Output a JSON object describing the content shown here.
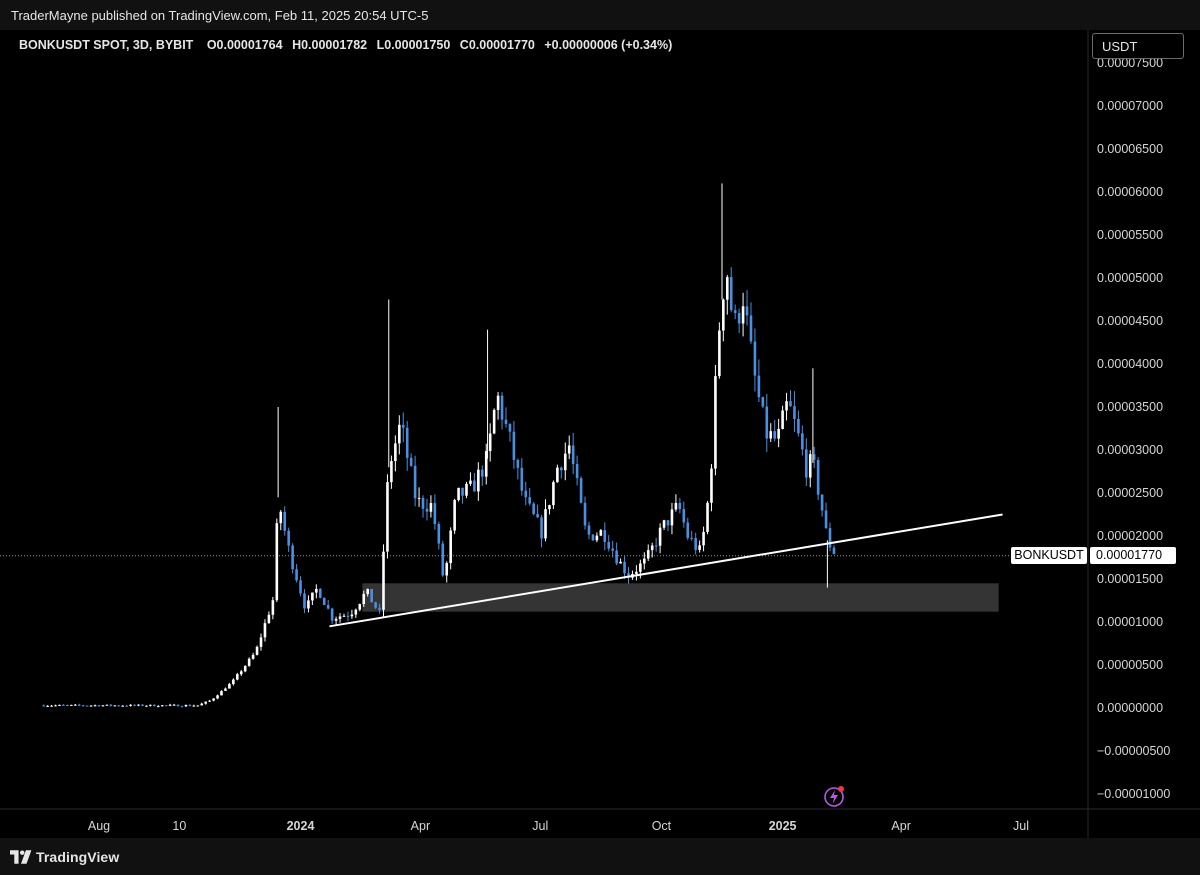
{
  "publish_info": "TraderMayne published on TradingView.com, Feb 11, 2025 20:54 UTC-5",
  "legend": {
    "symbol": "BONKUSDT SPOT, 3D, BYBIT",
    "open": "O0.00001764",
    "high": "H0.00001782",
    "low": "L0.00001750",
    "close": "C0.00001770",
    "change": "+0.00000006 (+0.34%)"
  },
  "currency_button": "USDT",
  "last_price_symbol": "BONKUSDT",
  "last_price_value": "0.00001770",
  "brand": "TradingView",
  "colors": {
    "background": "#000000",
    "bull_candle": "#ffffff",
    "bear_candle": "#4a90e2",
    "trendline": "#ffffff",
    "zone": "#3a3a3a",
    "grid": "#1a1a1a"
  },
  "icons": {
    "logo": "tradingview-logo-icon",
    "lightning": "lightning-icon"
  },
  "chart_data": {
    "type": "candlestick",
    "title": "BONKUSDT SPOT, 3D, BYBIT",
    "ylim": [
      -1.05e-05,
      7.55e-05
    ],
    "y_ticks": [
      "0.00007500",
      "0.00007000",
      "0.00006500",
      "0.00006000",
      "0.00005500",
      "0.00005000",
      "0.00004500",
      "0.00004000",
      "0.00003500",
      "0.00003000",
      "0.00002500",
      "0.00002000",
      "0.00001500",
      "0.00001000",
      "0.00000500",
      "0.00000000",
      "−0.00000500",
      "−0.00001000"
    ],
    "x_ticks": [
      {
        "label": "Aug",
        "date": "2023-08-01"
      },
      {
        "label": "10",
        "date": "2023-10-01"
      },
      {
        "label": "2024",
        "date": "2024-01-01",
        "bold": true
      },
      {
        "label": "Apr",
        "date": "2024-04-01"
      },
      {
        "label": "Jul",
        "date": "2024-07-01"
      },
      {
        "label": "Oct",
        "date": "2024-10-01"
      },
      {
        "label": "2025",
        "date": "2025-01-01",
        "bold": true
      },
      {
        "label": "Apr",
        "date": "2025-04-01"
      },
      {
        "label": "Jul",
        "date": "2025-07-01"
      }
    ],
    "xlim": [
      "2023-06-16",
      "2025-08-31"
    ],
    "last_price": 1.77e-05,
    "price_path": [
      {
        "date": "2023-06-17",
        "close": 3e-07
      },
      {
        "date": "2023-10-15",
        "close": 3e-07
      },
      {
        "date": "2023-10-25",
        "close": 9e-07
      },
      {
        "date": "2023-11-10",
        "close": 3e-06
      },
      {
        "date": "2023-11-28",
        "close": 6.5e-06
      },
      {
        "date": "2023-12-12",
        "close": 1.3e-05
      },
      {
        "date": "2023-12-15",
        "close": 2.45e-05
      },
      {
        "date": "2023-12-22",
        "close": 1.9e-05
      },
      {
        "date": "2024-01-05",
        "close": 1.15e-05
      },
      {
        "date": "2024-01-14",
        "close": 1.4e-05
      },
      {
        "date": "2024-01-25",
        "close": 1.05e-05
      },
      {
        "date": "2024-02-08",
        "close": 1.1e-05
      },
      {
        "date": "2024-02-20",
        "close": 1.35e-05
      },
      {
        "date": "2024-03-01",
        "close": 1.1e-05
      },
      {
        "date": "2024-03-08",
        "close": 2.8e-05
      },
      {
        "date": "2024-03-17",
        "close": 3.3e-05
      },
      {
        "date": "2024-03-29",
        "close": 2.4e-05
      },
      {
        "date": "2024-04-10",
        "close": 2.35e-05
      },
      {
        "date": "2024-04-19",
        "close": 1.45e-05
      },
      {
        "date": "2024-04-28",
        "close": 2.45e-05
      },
      {
        "date": "2024-05-10",
        "close": 2.55e-05
      },
      {
        "date": "2024-05-22",
        "close": 2.9e-05
      },
      {
        "date": "2024-05-29",
        "close": 3.65e-05
      },
      {
        "date": "2024-06-08",
        "close": 3.1e-05
      },
      {
        "date": "2024-06-19",
        "close": 2.4e-05
      },
      {
        "date": "2024-07-02",
        "close": 2.05e-05
      },
      {
        "date": "2024-07-14",
        "close": 2.8e-05
      },
      {
        "date": "2024-07-23",
        "close": 3.05e-05
      },
      {
        "date": "2024-08-05",
        "close": 2e-05
      },
      {
        "date": "2024-08-18",
        "close": 2.05e-05
      },
      {
        "date": "2024-08-30",
        "close": 1.7e-05
      },
      {
        "date": "2024-09-06",
        "close": 1.55e-05
      },
      {
        "date": "2024-09-19",
        "close": 1.7e-05
      },
      {
        "date": "2024-10-02",
        "close": 2.1e-05
      },
      {
        "date": "2024-10-14",
        "close": 2.35e-05
      },
      {
        "date": "2024-10-21",
        "close": 2e-05
      },
      {
        "date": "2024-10-31",
        "close": 1.8e-05
      },
      {
        "date": "2024-11-07",
        "close": 2.6e-05
      },
      {
        "date": "2024-11-13",
        "close": 4.3e-05
      },
      {
        "date": "2024-11-19",
        "close": 5.2e-05
      },
      {
        "date": "2024-11-25",
        "close": 4.4e-05
      },
      {
        "date": "2024-12-02",
        "close": 4.8e-05
      },
      {
        "date": "2024-12-10",
        "close": 3.9e-05
      },
      {
        "date": "2024-12-19",
        "close": 3.2e-05
      },
      {
        "date": "2024-12-28",
        "close": 3.1e-05
      },
      {
        "date": "2025-01-05",
        "close": 3.55e-05
      },
      {
        "date": "2025-01-12",
        "close": 3.2e-05
      },
      {
        "date": "2025-01-19",
        "close": 2.8e-05
      },
      {
        "date": "2025-01-24",
        "close": 2.85e-05
      },
      {
        "date": "2025-01-30",
        "close": 2.4e-05
      },
      {
        "date": "2025-02-04",
        "close": 1.95e-05
      },
      {
        "date": "2025-02-11",
        "close": 1.77e-05
      }
    ],
    "wicks": [
      {
        "date": "2023-12-15",
        "high": 3.5e-05
      },
      {
        "date": "2024-03-08",
        "high": 4.75e-05
      },
      {
        "date": "2024-05-22",
        "high": 4.4e-05
      },
      {
        "date": "2024-11-16",
        "high": 6.1e-05
      },
      {
        "date": "2025-01-24",
        "high": 3.95e-05
      },
      {
        "date": "2025-02-04",
        "low": 1.4e-05
      }
    ],
    "trendline": [
      {
        "date": "2024-01-23",
        "price": 9.5e-06
      },
      {
        "date": "2025-06-17",
        "price": 2.25e-05
      }
    ],
    "zone": {
      "start": "2024-02-17",
      "end": "2025-06-14",
      "top": 1.45e-05,
      "bottom": 1.12e-05
    }
  }
}
